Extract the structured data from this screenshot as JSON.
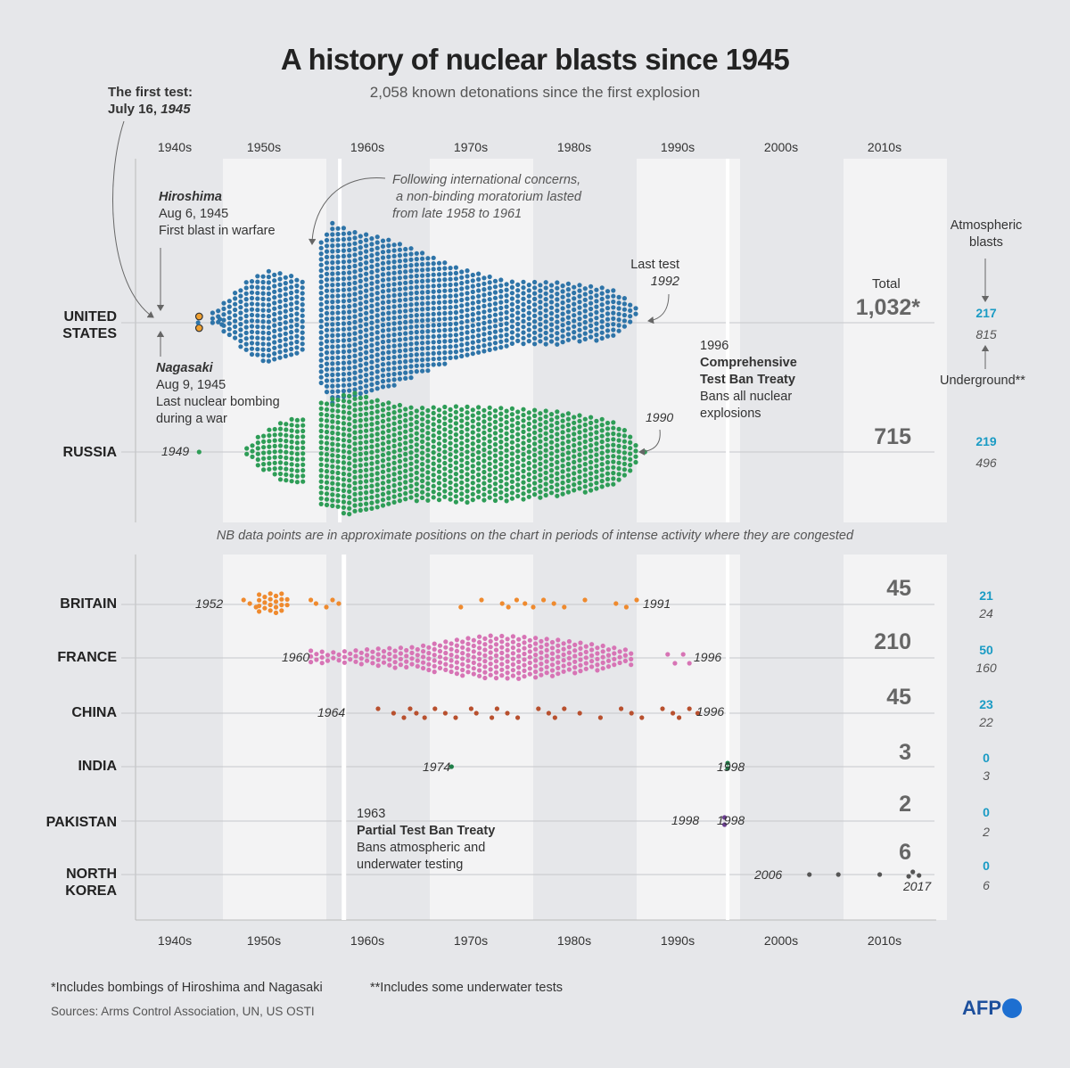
{
  "title": "A history of nuclear blasts since 1945",
  "subtitle": "2,058 known detonations since the first explosion",
  "decades_top": [
    "1940s",
    "1950s",
    "1960s",
    "1970s",
    "1980s",
    "1990s",
    "2000s",
    "2010s"
  ],
  "decades_bottom": [
    "1940s",
    "1950s",
    "1960s",
    "1970s",
    "1980s",
    "1990s",
    "2000s",
    "2010s"
  ],
  "first_test": {
    "line1": "The first test:",
    "line2a": "July 16, ",
    "line2b": "1945"
  },
  "hiroshima": {
    "name": "Hiroshima",
    "date": "Aug 6, 1945",
    "desc": "First blast in warfare"
  },
  "nagasaki": {
    "name": "Nagasaki",
    "date": "Aug 9, 1945",
    "desc1": "Last nuclear bombing",
    "desc2": "during a war"
  },
  "moratorium": {
    "l1": "Following international concerns,",
    "l2": "a non-binding moratorium lasted",
    "l3": "from  late 1958 to 1961"
  },
  "last_test": {
    "label": "Last test",
    "year": "1992"
  },
  "russia_last": "1990",
  "russia_first": "1949",
  "ctbt": {
    "year": "1996",
    "name1": "Comprehensive",
    "name2": "Test Ban Treaty",
    "desc1": "Bans all nuclear",
    "desc2": "explosions"
  },
  "ptbt": {
    "year": "1963",
    "name": "Partial Test Ban Treaty",
    "desc1": "Bans atmospheric and",
    "desc2": "underwater  testing"
  },
  "total_label": "Total",
  "atmospheric_label": {
    "l1": "Atmospheric",
    "l2": "blasts"
  },
  "underground_label": "Underground**",
  "nb_note": "NB data points are in approximate positions on the chart in periods of intense activity where they are congested",
  "footnote1": "*Includes bombings of Hiroshima and Nagasaki",
  "footnote2": "**Includes some underwater tests",
  "sources": "Sources: Arms Control Association, UN, US OSTI",
  "logo": "AFP",
  "colors": {
    "us": "#2e74a8",
    "russia": "#2e9d57",
    "britain": "#ef8a2e",
    "france": "#d774b5",
    "china": "#b8502e",
    "india": "#1e7d47",
    "pakistan": "#6a3d8f",
    "north_korea": "#555555",
    "atmospheric": "#1a9bc4",
    "band": "#f3f3f4"
  },
  "chart_data": {
    "type": "scatter",
    "title": "A history of nuclear blasts since 1945",
    "x_range": [
      1940,
      2020
    ],
    "series": [
      {
        "name": "UNITED STATES",
        "label1": "UNITED",
        "label2": "STATES",
        "total": "1,032*",
        "atmospheric": "217",
        "underground": "815",
        "first_year": 1945,
        "last_year": 1992
      },
      {
        "name": "RUSSIA",
        "total": "715",
        "atmospheric": "219",
        "underground": "496",
        "first_year": 1949,
        "last_year": 1990
      },
      {
        "name": "BRITAIN",
        "total": "45",
        "atmospheric": "21",
        "underground": "24",
        "first_year": 1952,
        "last_year": 1991,
        "first_label": "1952",
        "last_label": "1991"
      },
      {
        "name": "FRANCE",
        "total": "210",
        "atmospheric": "50",
        "underground": "160",
        "first_year": 1960,
        "last_year": 1996,
        "first_label": "1960",
        "last_label": "1996"
      },
      {
        "name": "CHINA",
        "total": "45",
        "atmospheric": "23",
        "underground": "22",
        "first_year": 1964,
        "last_year": 1996,
        "first_label": "1964",
        "last_label": "1996"
      },
      {
        "name": "INDIA",
        "total": "3",
        "atmospheric": "0",
        "underground": "3",
        "first_year": 1974,
        "last_year": 1998,
        "first_label": "1974",
        "last_label": "1998"
      },
      {
        "name": "PAKISTAN",
        "total": "2",
        "atmospheric": "0",
        "underground": "2",
        "first_year": 1998,
        "last_year": 1998,
        "first_label": "1998",
        "last_label": "1998"
      },
      {
        "name": "NORTH KOREA",
        "label1": "NORTH",
        "label2": "KOREA",
        "total": "6",
        "atmospheric": "0",
        "underground": "6",
        "first_year": 2006,
        "last_year": 2017,
        "first_label": "2006",
        "last_label": "2017"
      }
    ]
  }
}
